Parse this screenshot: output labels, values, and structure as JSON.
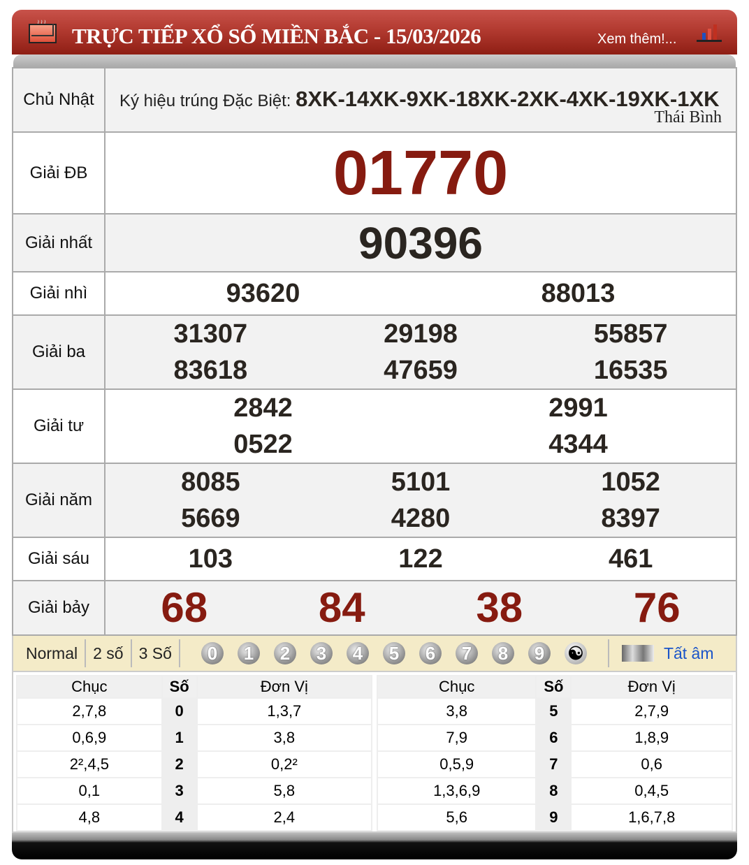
{
  "header": {
    "title": "TRỰC TIẾP XỔ SỐ MIỀN BẮC - 15/03/2026",
    "more_link": "Xem thêm!...",
    "icons": [
      "mail-icon",
      "chart-icon"
    ]
  },
  "info": {
    "day": "Chủ Nhật",
    "symbol_label": "Ký hiệu trúng Đặc Biệt:",
    "symbols": "8XK-14XK-9XK-18XK-2XK-4XK-19XK-1XK",
    "province": "Thái Bình"
  },
  "prizes": [
    {
      "label": "Giải ĐB",
      "numbers": [
        "01770"
      ]
    },
    {
      "label": "Giải nhất",
      "numbers": [
        "90396"
      ]
    },
    {
      "label": "Giải nhì",
      "numbers": [
        "93620",
        "88013"
      ]
    },
    {
      "label": "Giải ba",
      "numbers": [
        "31307",
        "29198",
        "55857",
        "83618",
        "47659",
        "16535"
      ]
    },
    {
      "label": "Giải tư",
      "numbers": [
        "2842",
        "2991",
        "0522",
        "4344"
      ]
    },
    {
      "label": "Giải năm",
      "numbers": [
        "8085",
        "5101",
        "1052",
        "5669",
        "4280",
        "8397"
      ]
    },
    {
      "label": "Giải sáu",
      "numbers": [
        "103",
        "122",
        "461"
      ]
    },
    {
      "label": "Giải bảy",
      "numbers": [
        "68",
        "84",
        "38",
        "76"
      ]
    }
  ],
  "toolbar": {
    "modes": [
      "Normal",
      "2 số",
      "3 Số"
    ],
    "digits": [
      "0",
      "1",
      "2",
      "3",
      "4",
      "5",
      "6",
      "7",
      "8",
      "9"
    ],
    "all_label": "Tất âm"
  },
  "loto": {
    "headers": [
      "Chục",
      "Số",
      "Đơn Vị"
    ],
    "left": [
      [
        "2,7,8",
        "0",
        "1,3,7"
      ],
      [
        "0,6,9",
        "1",
        "3,8"
      ],
      [
        "2²,4,5",
        "2",
        "0,2²"
      ],
      [
        "0,1",
        "3",
        "5,8"
      ],
      [
        "4,8",
        "4",
        "2,4"
      ]
    ],
    "right": [
      [
        "3,8",
        "5",
        "2,7,9"
      ],
      [
        "7,9",
        "6",
        "1,8,9"
      ],
      [
        "0,5,9",
        "7",
        "0,6"
      ],
      [
        "1,3,6,9",
        "8",
        "0,4,5"
      ],
      [
        "5,6",
        "9",
        "1,6,7,8"
      ]
    ]
  },
  "colors": {
    "header_red": "#b23a30",
    "prize_red": "#861b10",
    "toolbar_bg": "#f4ebc8",
    "link_blue": "#1b55c9"
  }
}
